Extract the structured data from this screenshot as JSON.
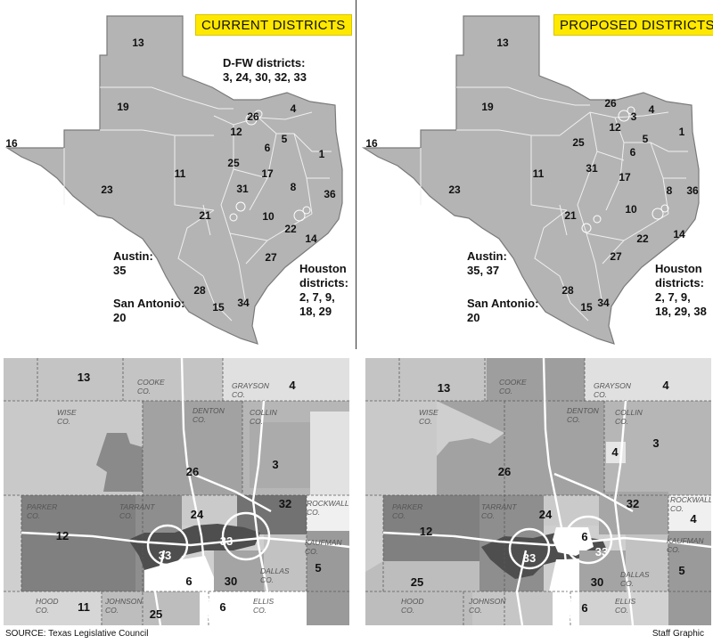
{
  "current": {
    "title": "CURRENT DISTRICTS",
    "districts": [
      "13",
      "19",
      "16",
      "23",
      "11",
      "21",
      "12",
      "26",
      "4",
      "6",
      "5",
      "1",
      "25",
      "17",
      "31",
      "8",
      "36",
      "10",
      "22",
      "14",
      "27",
      "28",
      "15",
      "34"
    ],
    "dfw_label": "D-FW districts:",
    "dfw_list": "3, 24, 30, 32, 33",
    "austin_label": "Austin:",
    "austin_list": "35",
    "sa_label": "San Antonio:",
    "sa_list": "20",
    "houston_label1": "Houston",
    "houston_label2": "districts:",
    "houston_list1": "2, 7, 9,",
    "houston_list2": "18, 29",
    "metro_districts": [
      "13",
      "4",
      "26",
      "3",
      "24",
      "32",
      "12",
      "33",
      "33",
      "6",
      "30",
      "5",
      "11",
      "25",
      "6"
    ],
    "counties": [
      "COOKE",
      "CO.",
      "GRAYSON",
      "CO.",
      "WISE",
      "CO.",
      "DENTON",
      "CO.",
      "COLLIN",
      "CO.",
      "PARKER",
      "CO.",
      "TARRANT",
      "CO.",
      "ROCKWALL",
      "CO.",
      "KAUFMAN",
      "CO.",
      "DALLAS",
      "CO.",
      "HOOD",
      "CO.",
      "JOHNSON",
      "CO.",
      "ELLIS",
      "CO."
    ]
  },
  "proposed": {
    "title": "PROPOSED DISTRICTS",
    "districts": [
      "13",
      "19",
      "16",
      "23",
      "11",
      "21",
      "26",
      "3",
      "4",
      "12",
      "25",
      "6",
      "5",
      "1",
      "31",
      "17",
      "8",
      "36",
      "10",
      "22",
      "14",
      "27",
      "28",
      "15",
      "34"
    ],
    "austin_label": "Austin:",
    "austin_list": "35, 37",
    "sa_label": "San Antonio:",
    "sa_list": "20",
    "houston_label1": "Houston",
    "houston_label2": "districts:",
    "houston_list1": "2, 7, 9,",
    "houston_list2": "18, 29, 38",
    "metro_districts": [
      "13",
      "4",
      "3",
      "4",
      "26",
      "24",
      "32",
      "12",
      "4",
      "6",
      "33",
      "33",
      "25",
      "30",
      "5",
      "6"
    ],
    "counties": [
      "COOKE",
      "CO.",
      "GRAYSON",
      "CO.",
      "WISE",
      "CO.",
      "DENTON",
      "CO.",
      "COLLIN",
      "CO.",
      "PARKER",
      "CO.",
      "TARRANT",
      "CO.",
      "ROCKWALL",
      "CO.",
      "KAUFMAN",
      "CO.",
      "DALLAS",
      "CO.",
      "HOOD",
      "CO.",
      "JOHNSON",
      "CO.",
      "ELLIS",
      "CO."
    ]
  },
  "footer": {
    "source": "SOURCE: Texas Legislative Council",
    "credit": "Staff Graphic"
  },
  "colors": {
    "state": "#b4b4b4",
    "state_edge": "#7a7a7a",
    "light": "#d8d8d8",
    "mid": "#a8a8a8",
    "dark": "#7c7c7c",
    "darker": "#5e5e5e",
    "tag": "#ffe800"
  }
}
